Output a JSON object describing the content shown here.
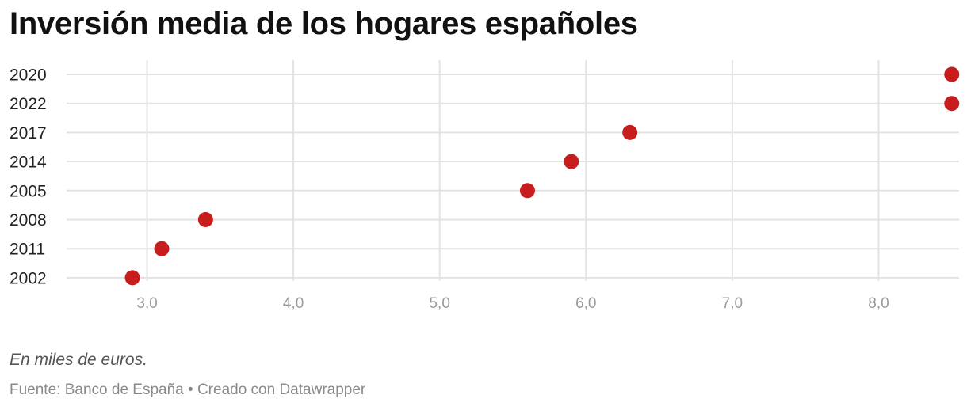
{
  "chart_data": {
    "type": "scatter",
    "title": "Inversión media de los hogares españoles",
    "xlabel": "",
    "ylabel": "",
    "xlim": [
      2.45,
      8.55
    ],
    "xticks": [
      3,
      4,
      5,
      6,
      7,
      8
    ],
    "xtick_labels": [
      "3,0",
      "4,0",
      "5,0",
      "6,0",
      "7,0",
      "8,0"
    ],
    "grid": true,
    "color": "#c71e1d",
    "categories": [
      "2020",
      "2022",
      "2017",
      "2014",
      "2005",
      "2008",
      "2011",
      "2002"
    ],
    "values": [
      8.5,
      8.5,
      6.3,
      5.9,
      5.6,
      3.4,
      3.1,
      2.9
    ]
  },
  "notes": "En miles de euros.",
  "source": {
    "label": "Fuente:",
    "name": "Banco de España",
    "separator": "•",
    "credit": "Creado con Datawrapper"
  }
}
